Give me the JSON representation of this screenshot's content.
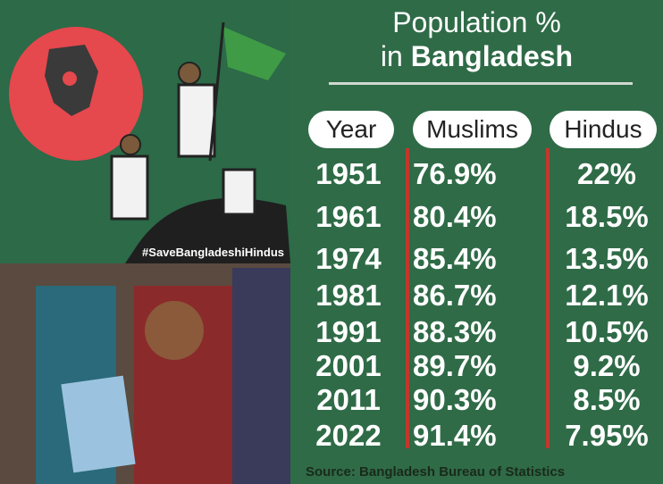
{
  "hashtag": "#SaveBangladeshiHindus",
  "title": {
    "line1": "Population %",
    "line2_prefix": "in",
    "line2_bold": "Bangladesh"
  },
  "table": {
    "headers": [
      "Year",
      "Muslims",
      "Hindus"
    ],
    "rows": [
      [
        "1951",
        "76.9%",
        "22%"
      ],
      [
        "1961",
        "80.4%",
        "18.5%"
      ],
      [
        "1974",
        "85.4%",
        "13.5%"
      ],
      [
        "1981",
        "86.7%",
        "12.1%"
      ],
      [
        "1991",
        "88.3%",
        "10.5%"
      ],
      [
        "2001",
        "89.7%",
        "9.2%"
      ],
      [
        "2011",
        "90.3%",
        "8.5%"
      ],
      [
        "2022",
        "91.4%",
        "7.95%"
      ]
    ]
  },
  "source": "Source: Bangladesh Bureau of Statistics"
}
